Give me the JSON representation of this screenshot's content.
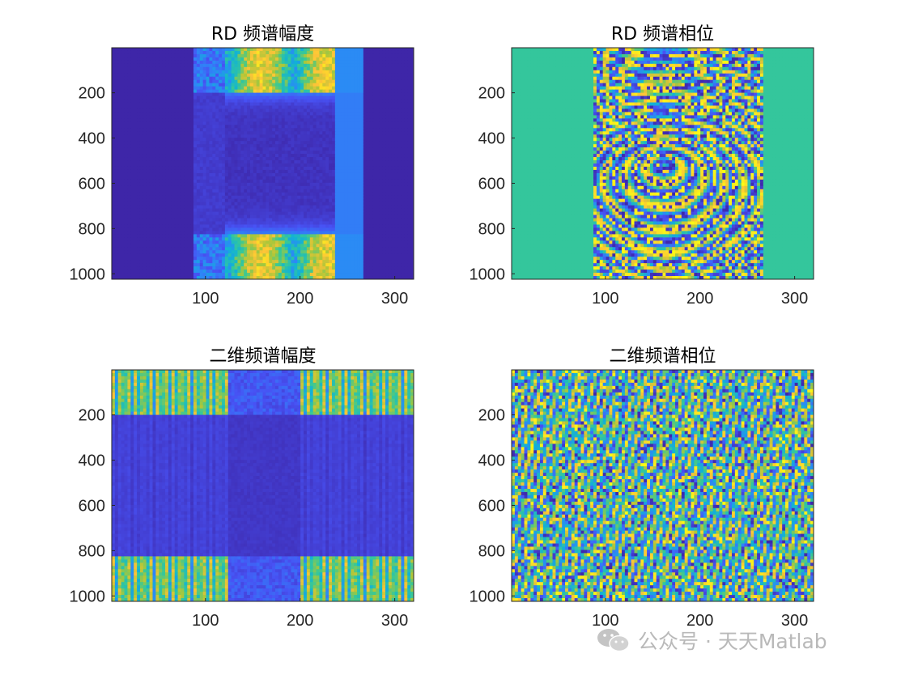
{
  "chart_data": [
    {
      "type": "heatmap",
      "title": "RD 频谱幅度",
      "x_ticks": [
        100,
        200,
        300
      ],
      "y_ticks": [
        200,
        400,
        600,
        800,
        1000
      ],
      "xlim": [
        1,
        320
      ],
      "ylim": [
        1,
        1024
      ],
      "y_reversed": true,
      "colormap": "parula",
      "pattern": "rd-magnitude"
    },
    {
      "type": "heatmap",
      "title": "RD 频谱相位",
      "x_ticks": [
        100,
        200,
        300
      ],
      "y_ticks": [
        200,
        400,
        600,
        800,
        1000
      ],
      "xlim": [
        1,
        320
      ],
      "ylim": [
        1,
        1024
      ],
      "y_reversed": true,
      "colormap": "parula",
      "pattern": "rd-phase"
    },
    {
      "type": "heatmap",
      "title": "二维频谱幅度",
      "x_ticks": [
        100,
        200,
        300
      ],
      "y_ticks": [
        200,
        400,
        600,
        800,
        1000
      ],
      "xlim": [
        1,
        320
      ],
      "ylim": [
        1,
        1024
      ],
      "y_reversed": true,
      "colormap": "parula",
      "pattern": "2d-magnitude"
    },
    {
      "type": "heatmap",
      "title": "二维频谱相位",
      "x_ticks": [
        100,
        200,
        300
      ],
      "y_ticks": [
        200,
        400,
        600,
        800,
        1000
      ],
      "xlim": [
        1,
        320
      ],
      "ylim": [
        1,
        1024
      ],
      "y_reversed": true,
      "colormap": "parula",
      "pattern": "2d-phase"
    }
  ],
  "watermark": {
    "text": "公众号 · 天天Matlab",
    "icon": "wechat-icon",
    "color": "#b9b9b9"
  }
}
